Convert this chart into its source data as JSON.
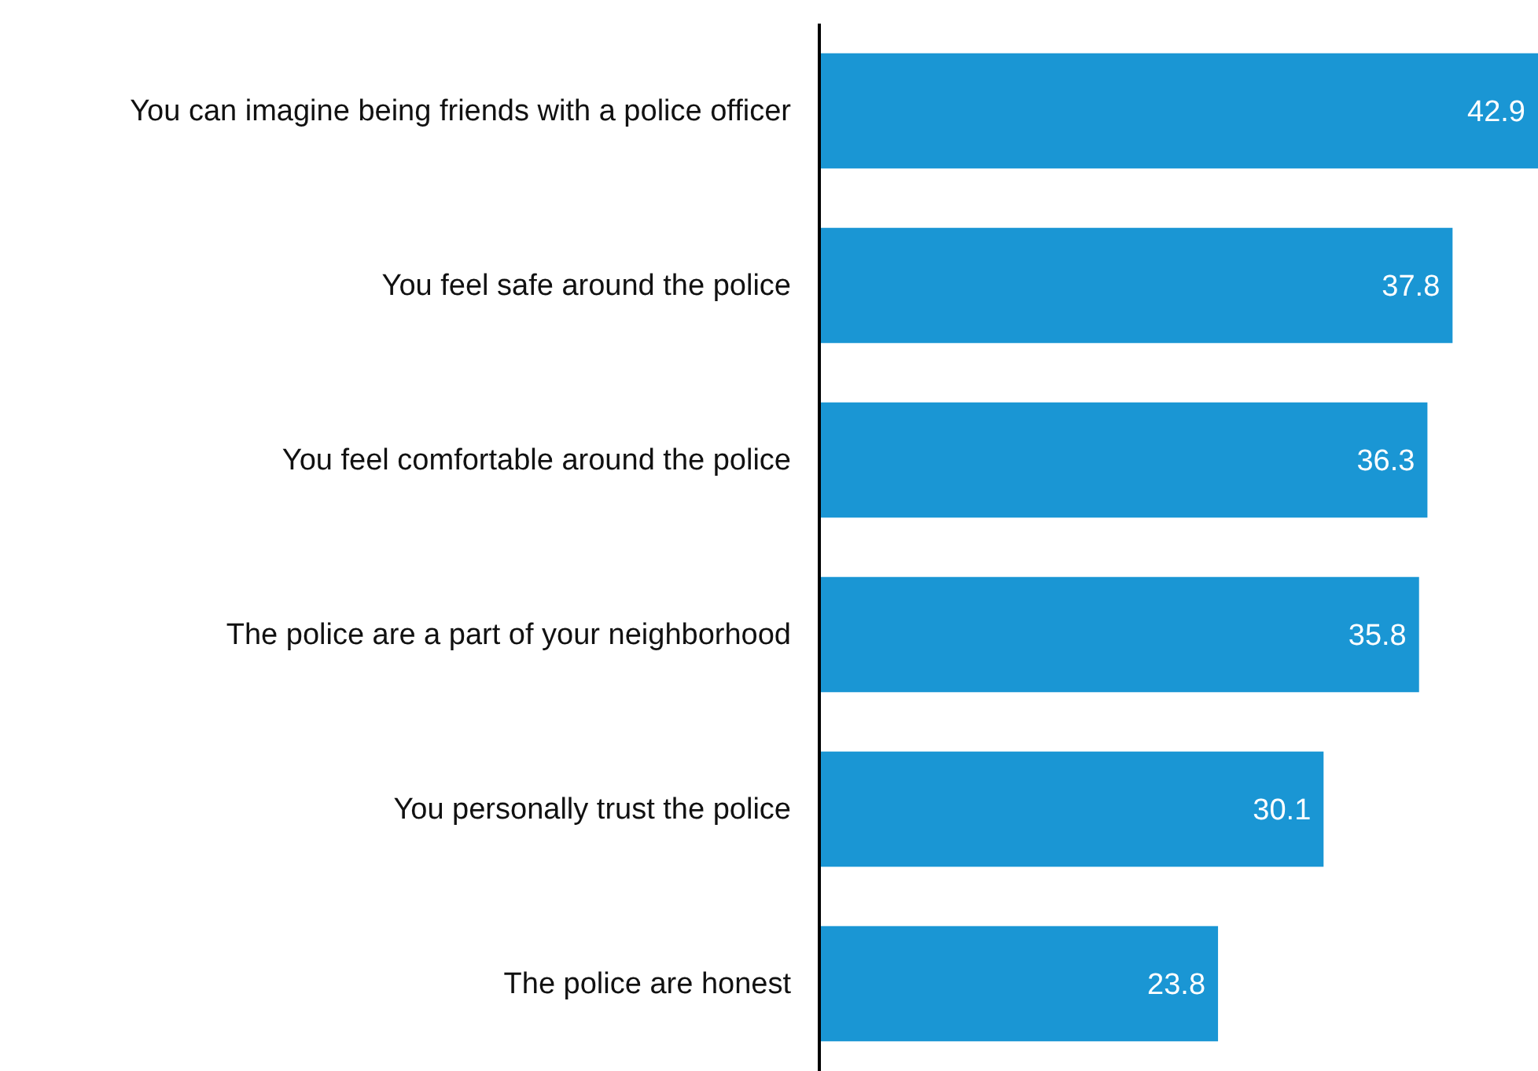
{
  "chart_data": {
    "type": "bar",
    "orientation": "horizontal",
    "categories": [
      "You can imagine being friends with a police officer",
      "You feel safe around the police",
      "You feel comfortable around the police",
      "The police are a part of your neighborhood",
      "You personally trust the police",
      "The police are honest"
    ],
    "values": [
      42.9,
      37.8,
      36.3,
      35.8,
      30.1,
      23.8
    ],
    "color": "#1a96d4",
    "data_labels": true
  }
}
